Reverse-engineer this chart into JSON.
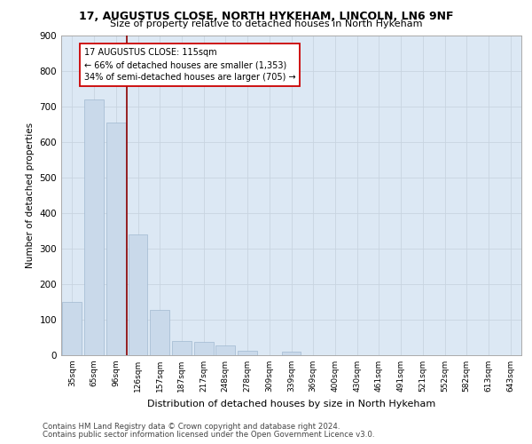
{
  "title1": "17, AUGUSTUS CLOSE, NORTH HYKEHAM, LINCOLN, LN6 9NF",
  "title2": "Size of property relative to detached houses in North Hykeham",
  "xlabel": "Distribution of detached houses by size in North Hykeham",
  "ylabel": "Number of detached properties",
  "categories": [
    "35sqm",
    "65sqm",
    "96sqm",
    "126sqm",
    "157sqm",
    "187sqm",
    "217sqm",
    "248sqm",
    "278sqm",
    "309sqm",
    "339sqm",
    "369sqm",
    "400sqm",
    "430sqm",
    "461sqm",
    "491sqm",
    "521sqm",
    "552sqm",
    "582sqm",
    "613sqm",
    "643sqm"
  ],
  "values": [
    150,
    720,
    655,
    340,
    128,
    40,
    38,
    28,
    12,
    0,
    10,
    0,
    0,
    0,
    0,
    0,
    0,
    0,
    0,
    0,
    0
  ],
  "bar_color": "#c9d9ea",
  "bar_edge_color": "#a0b8d0",
  "vline_x": 2.5,
  "vline_color": "#8b0000",
  "annotation_line1": "17 AUGUSTUS CLOSE: 115sqm",
  "annotation_line2": "← 66% of detached houses are smaller (1,353)",
  "annotation_line3": "34% of semi-detached houses are larger (705) →",
  "annotation_box_color": "white",
  "annotation_box_edge": "#cc0000",
  "ylim": [
    0,
    900
  ],
  "yticks": [
    0,
    100,
    200,
    300,
    400,
    500,
    600,
    700,
    800,
    900
  ],
  "grid_color": "#c8d4e0",
  "background_color": "#dce8f4",
  "footer1": "Contains HM Land Registry data © Crown copyright and database right 2024.",
  "footer2": "Contains public sector information licensed under the Open Government Licence v3.0."
}
